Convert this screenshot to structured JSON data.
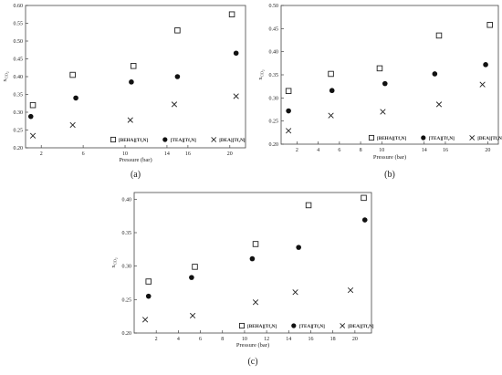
{
  "chart_data": [
    {
      "type": "scatter",
      "panel_label": "(a)",
      "xlabel": "Pressure (bar)",
      "ylabel": "x",
      "ylabel_sub": "CO",
      "ylabel_sub2": "2",
      "xlim": [
        0.5,
        21.5
      ],
      "ylim": [
        0.2,
        0.6
      ],
      "xticks": [
        2,
        6,
        10,
        14,
        16,
        20
      ],
      "xtick_labels": [
        "2",
        "6",
        "10",
        "14",
        "16",
        "20"
      ],
      "yticks": [
        0.2,
        0.25,
        0.3,
        0.35,
        0.4,
        0.45,
        0.5,
        0.55,
        0.6
      ],
      "ytick_labels": [
        "0.20",
        "0.25",
        "0.30",
        "0.35",
        "0.40",
        "0.45",
        "0.50",
        "0.55",
        "0.60"
      ],
      "legend_position": "bottom-right",
      "series": [
        {
          "name": "[BEHA][Tf₂N]",
          "marker": "square",
          "x": [
            1.2,
            5.0,
            10.8,
            15.0,
            20.2
          ],
          "y": [
            0.32,
            0.405,
            0.43,
            0.53,
            0.575
          ]
        },
        {
          "name": "[TEA][Tf₂N]",
          "marker": "circle",
          "x": [
            1.0,
            5.3,
            10.6,
            15.0,
            20.6
          ],
          "y": [
            0.288,
            0.34,
            0.385,
            0.4,
            0.466
          ]
        },
        {
          "name": "[DEA][Tf₂N]",
          "marker": "cross",
          "x": [
            1.2,
            5.0,
            10.5,
            14.7,
            20.6
          ],
          "y": [
            0.234,
            0.264,
            0.278,
            0.322,
            0.345
          ]
        }
      ]
    },
    {
      "type": "scatter",
      "panel_label": "(b)",
      "xlabel": "Pressure (bar)",
      "ylabel": "x",
      "ylabel_sub": "CO",
      "ylabel_sub2": "2",
      "xlim": [
        0.5,
        21.0
      ],
      "ylim": [
        0.2,
        0.5
      ],
      "xticks": [
        2,
        4,
        6,
        8,
        10,
        14,
        16,
        20
      ],
      "xtick_labels": [
        "2",
        "4",
        "6",
        "8",
        "10",
        "14",
        "16",
        "20"
      ],
      "yticks": [
        0.2,
        0.25,
        0.3,
        0.35,
        0.4,
        0.45,
        0.5
      ],
      "ytick_labels": [
        "0.20",
        "0.25",
        "0.30",
        "0.35",
        "0.40",
        "0.45",
        "0.50"
      ],
      "legend_position": "bottom-right",
      "series": [
        {
          "name": "[BEHA][Tf₂N]",
          "marker": "square",
          "x": [
            1.2,
            5.2,
            9.8,
            15.4,
            20.2
          ],
          "y": [
            0.315,
            0.352,
            0.364,
            0.435,
            0.458
          ]
        },
        {
          "name": "[TEA][Tf₂N]",
          "marker": "circle",
          "x": [
            1.2,
            5.3,
            10.3,
            15.0,
            19.8
          ],
          "y": [
            0.272,
            0.316,
            0.331,
            0.352,
            0.372
          ]
        },
        {
          "name": "[DEA][Tf₂N]",
          "marker": "cross",
          "x": [
            1.2,
            5.2,
            10.1,
            15.4,
            19.5
          ],
          "y": [
            0.229,
            0.262,
            0.27,
            0.286,
            0.329
          ]
        }
      ]
    },
    {
      "type": "scatter",
      "panel_label": "(c)",
      "xlabel": "Pressure (bar)",
      "ylabel": "x",
      "ylabel_sub": "CO",
      "ylabel_sub2": "2",
      "xlim": [
        0.0,
        21.5
      ],
      "ylim": [
        0.2,
        0.41
      ],
      "xticks": [
        2,
        4,
        6,
        8,
        10,
        12,
        14,
        16,
        18,
        20
      ],
      "xtick_labels": [
        "2",
        "4",
        "6",
        "8",
        "10",
        "12",
        "14",
        "16",
        "18",
        "20"
      ],
      "yticks": [
        0.2,
        0.25,
        0.3,
        0.35,
        0.4
      ],
      "ytick_labels": [
        "0.20",
        "0.25",
        "0.30",
        "0.35",
        "0.40"
      ],
      "legend_position": "bottom-right",
      "series": [
        {
          "name": "[BEHA][Tf₂N]",
          "marker": "square",
          "x": [
            1.3,
            5.5,
            11.0,
            15.8,
            20.8
          ],
          "y": [
            0.277,
            0.299,
            0.333,
            0.391,
            0.402
          ]
        },
        {
          "name": "[TEA][Tf₂N]",
          "marker": "circle",
          "x": [
            1.3,
            5.2,
            10.7,
            14.9,
            20.9
          ],
          "y": [
            0.255,
            0.283,
            0.311,
            0.328,
            0.369
          ]
        },
        {
          "name": "[DEA][Tf₂N]",
          "marker": "cross",
          "x": [
            1.0,
            5.3,
            11.0,
            14.6,
            19.6
          ],
          "y": [
            0.22,
            0.226,
            0.246,
            0.261,
            0.264
          ]
        }
      ]
    }
  ]
}
